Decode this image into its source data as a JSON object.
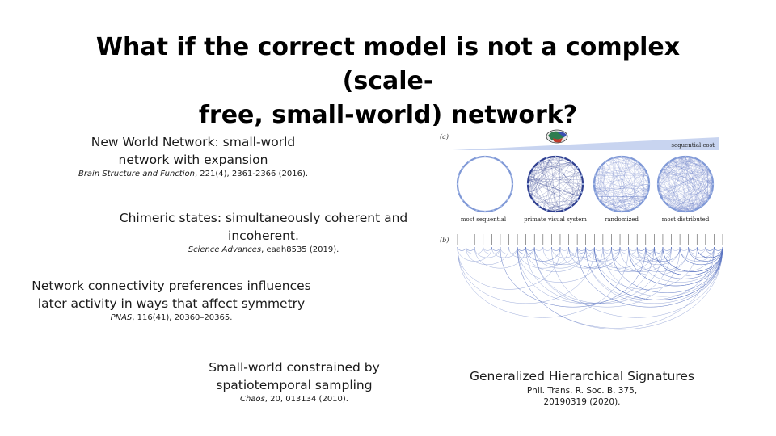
{
  "slide": {
    "title_line1": "What if the correct model is not a complex (scale-",
    "title_line2": "free, small-world) network?"
  },
  "items": [
    {
      "line1": "New World Network: small-world",
      "line2": "network with expansion",
      "journal": "Brain Structure and Function",
      "ref": ", 221(4), 2361-2366 (2016)."
    },
    {
      "line1": "Chimeric states: simultaneously coherent and",
      "line2": "incoherent.",
      "journal": "Science Advances",
      "ref": ", eaah8535 (2019)."
    },
    {
      "line1": "Network connectivity preferences influences",
      "line2": "later activity in ways that affect  symmetry",
      "journal": "PNAS",
      "ref": ", 116(41), 20360–20365."
    },
    {
      "line1": "Small-world constrained by",
      "line2": "spatiotemporal sampling",
      "journal": "Chaos",
      "ref": ", 20, 013134 (2010)."
    }
  ],
  "figure": {
    "panel_a_label": "(a)",
    "panel_b_label": "(b)",
    "cost_label": "sequential cost",
    "circle_labels": [
      "most sequential",
      "primate visual system",
      "randomized",
      "most distributed"
    ],
    "colors": {
      "light": "#a9bde8",
      "mid": "#7f98d6",
      "dark": "#2f3f8f",
      "edge": "#5b74c2"
    }
  },
  "caption": {
    "title": "Generalized Hierarchical Signatures",
    "line1": "Phil. Trans. R. Soc. B, 375,",
    "line2": "20190319 (2020)."
  }
}
